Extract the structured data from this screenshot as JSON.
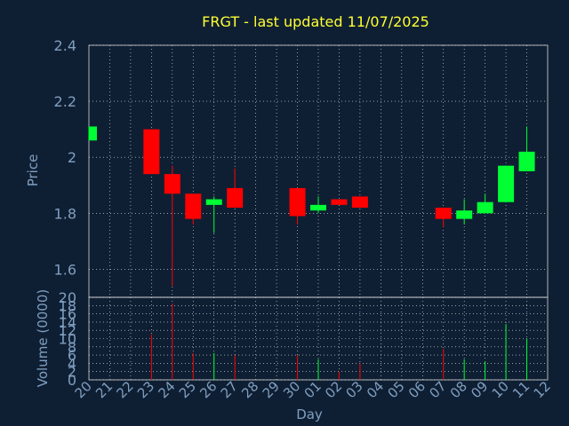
{
  "chart_data": {
    "type": "candlestick",
    "title": "FRGT - last updated 11/07/2025",
    "xlabel": "Day",
    "price_ylabel": "Price",
    "volume_ylabel": "Volume (0000)",
    "x": [
      "20",
      "21",
      "22",
      "23",
      "24",
      "25",
      "26",
      "27",
      "28",
      "29",
      "30",
      "01",
      "02",
      "03",
      "04",
      "05",
      "06",
      "07",
      "08",
      "09",
      "10",
      "11",
      "12"
    ],
    "price_yticks": [
      "1.6",
      "1.8",
      "2",
      "2.2",
      "2.4"
    ],
    "price_ylim": [
      1.5,
      2.4
    ],
    "volume_yticks": [
      "0",
      "2",
      "4",
      "6",
      "8",
      "10",
      "12",
      "14",
      "16",
      "18",
      "20"
    ],
    "volume_ylim": [
      0,
      20
    ],
    "colors": {
      "up": "#00ff33",
      "down": "#ff0000",
      "title": "#ffff33",
      "text": "#7f9fc0",
      "background": "#0f1f33"
    },
    "candles": [
      {
        "day": "20",
        "open": 2.06,
        "close": 2.11,
        "high": 2.11,
        "low": 2.06,
        "volume": 0
      },
      {
        "day": "23",
        "open": 2.1,
        "close": 1.94,
        "high": 2.1,
        "low": 1.94,
        "volume": 11
      },
      {
        "day": "24",
        "open": 1.94,
        "close": 1.87,
        "high": 1.97,
        "low": 1.54,
        "volume": 18.5
      },
      {
        "day": "25",
        "open": 1.87,
        "close": 1.78,
        "high": 1.87,
        "low": 1.76,
        "volume": 6.5
      },
      {
        "day": "26",
        "open": 1.83,
        "close": 1.85,
        "high": 1.86,
        "low": 1.73,
        "volume": 6.5
      },
      {
        "day": "27",
        "open": 1.89,
        "close": 1.82,
        "high": 1.96,
        "low": 1.82,
        "volume": 6
      },
      {
        "day": "30",
        "open": 1.89,
        "close": 1.79,
        "high": 1.89,
        "low": 1.76,
        "volume": 6
      },
      {
        "day": "01",
        "open": 1.81,
        "close": 1.83,
        "high": 1.86,
        "low": 1.8,
        "volume": 5
      },
      {
        "day": "02",
        "open": 1.85,
        "close": 1.83,
        "high": 1.85,
        "low": 1.83,
        "volume": 2
      },
      {
        "day": "03",
        "open": 1.86,
        "close": 1.82,
        "high": 1.86,
        "low": 1.82,
        "volume": 4
      },
      {
        "day": "07",
        "open": 1.82,
        "close": 1.78,
        "high": 1.82,
        "low": 1.75,
        "volume": 7.5
      },
      {
        "day": "08",
        "open": 1.78,
        "close": 1.81,
        "high": 1.85,
        "low": 1.76,
        "volume": 5
      },
      {
        "day": "09",
        "open": 1.8,
        "close": 1.84,
        "high": 1.87,
        "low": 1.8,
        "volume": 4.5
      },
      {
        "day": "10",
        "open": 1.84,
        "close": 1.97,
        "high": 1.97,
        "low": 1.84,
        "volume": 13.5
      },
      {
        "day": "11",
        "open": 1.95,
        "close": 2.02,
        "high": 2.11,
        "low": 1.95,
        "volume": 10
      }
    ]
  }
}
